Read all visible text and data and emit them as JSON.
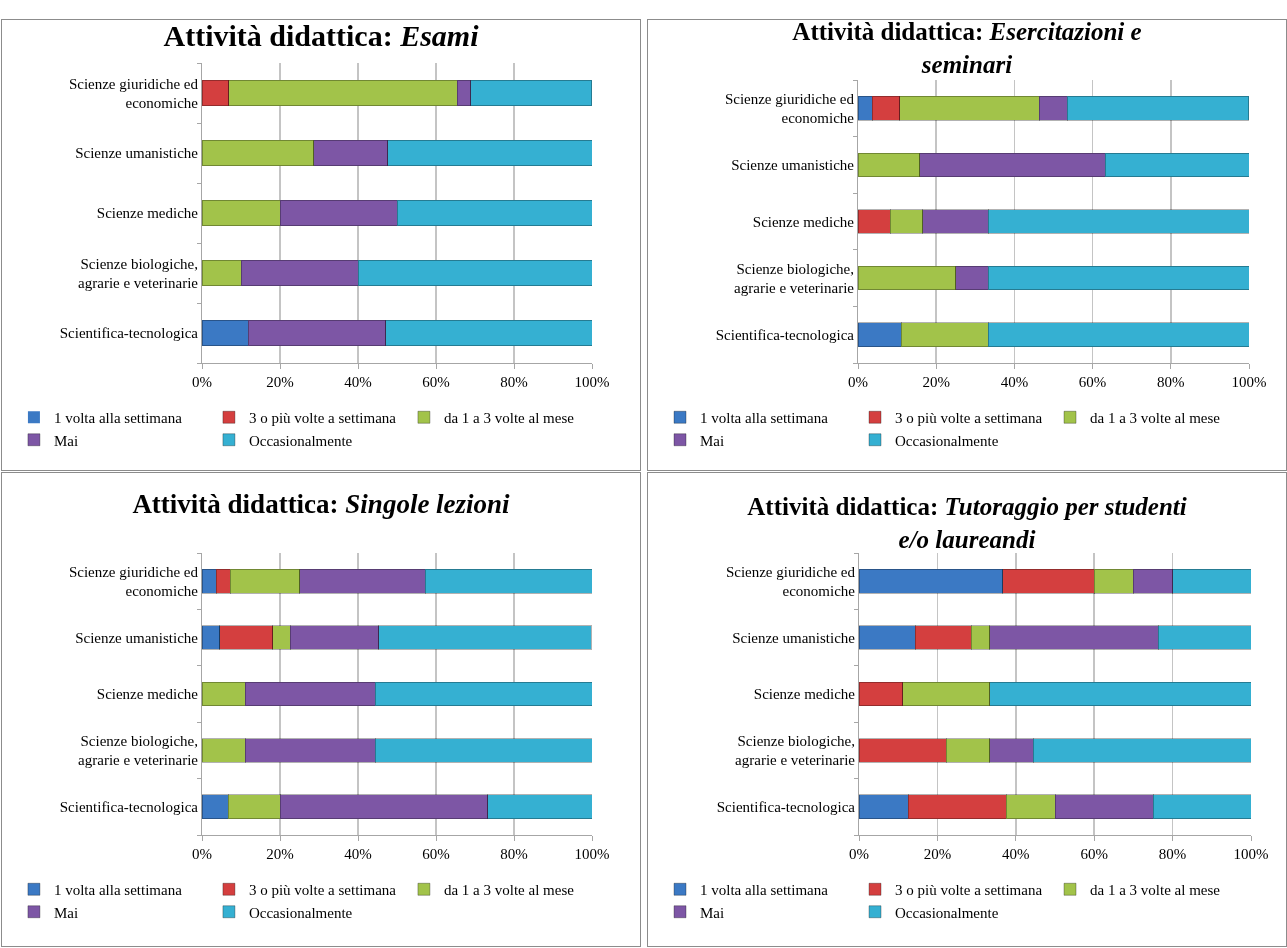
{
  "chart_data": [
    {
      "type": "bar",
      "orientation": "horizontal",
      "stacked": true,
      "title": "Attività didattica: Esami",
      "categories": [
        "Scienze giuridiche ed economiche",
        "Scienze umanistiche",
        "Scienze mediche",
        "Scienze biologiche, agrarie e veterinarie",
        "Scientifica-tecnologica"
      ],
      "series": [
        {
          "name": "1 volta alla settimana",
          "color": "#3b79c4",
          "values": [
            0,
            0,
            0,
            0,
            11.8
          ]
        },
        {
          "name": "3 o più volte a settimana",
          "color": "#d43f3f",
          "values": [
            6.9,
            0,
            0,
            0,
            0
          ]
        },
        {
          "name": "da 1 a 3 volte al mese",
          "color": "#a2c34a",
          "values": [
            58.6,
            28.6,
            20,
            10,
            0
          ]
        },
        {
          "name": "Mai",
          "color": "#7d56a5",
          "values": [
            3.4,
            19.0,
            30,
            30,
            35.3
          ]
        },
        {
          "name": "Occasionalmente",
          "color": "#35b0d2",
          "values": [
            31.0,
            52.4,
            50,
            60,
            52.9
          ]
        }
      ],
      "xlim": [
        0,
        100
      ],
      "xticks": [
        {
          "value": 0,
          "label": "0%"
        },
        {
          "value": 20,
          "label": "20%"
        },
        {
          "value": 40,
          "label": "40%"
        },
        {
          "value": 60,
          "label": "60%"
        },
        {
          "value": 80,
          "label": "80%"
        },
        {
          "value": 100,
          "label": "100%"
        }
      ],
      "grid": "x",
      "legend": "bottom"
    },
    {
      "type": "bar",
      "orientation": "horizontal",
      "stacked": true,
      "title": "Attività didattica: Esercitazioni e seminari",
      "categories": [
        "Scienze giuridiche ed economiche",
        "Scienze umanistiche",
        "Scienze mediche",
        "Scienze biologiche, agrarie e veterinarie",
        "Scientifica-tecnologica"
      ],
      "series": [
        {
          "name": "1 volta alla settimana",
          "color": "#3b79c4",
          "values": [
            3.6,
            0,
            0,
            0,
            11.1
          ]
        },
        {
          "name": "3 o più volte a settimana",
          "color": "#d43f3f",
          "values": [
            7.1,
            0,
            8.3,
            0,
            0
          ]
        },
        {
          "name": "da 1 a 3 volte al mese",
          "color": "#a2c34a",
          "values": [
            35.7,
            15.8,
            8.3,
            25.0,
            22.2
          ]
        },
        {
          "name": "Mai",
          "color": "#7d56a5",
          "values": [
            7.1,
            47.4,
            16.7,
            8.3,
            0
          ]
        },
        {
          "name": "Occasionalmente",
          "color": "#35b0d2",
          "values": [
            46.4,
            36.8,
            66.7,
            66.7,
            66.7
          ]
        }
      ],
      "xlim": [
        0,
        100
      ],
      "xticks": [
        {
          "value": 0,
          "label": "0%"
        },
        {
          "value": 20,
          "label": "20%"
        },
        {
          "value": 40,
          "label": "40%"
        },
        {
          "value": 60,
          "label": "60%"
        },
        {
          "value": 80,
          "label": "80%"
        },
        {
          "value": 100,
          "label": "100%"
        }
      ],
      "grid": "x",
      "legend": "bottom"
    },
    {
      "type": "bar",
      "orientation": "horizontal",
      "stacked": true,
      "title": "Attività didattica: Singole lezioni",
      "categories": [
        "Scienze giuridiche ed economiche",
        "Scienze umanistiche",
        "Scienze mediche",
        "Scienze biologiche, agrarie e veterinarie",
        "Scientifica-tecnologica"
      ],
      "series": [
        {
          "name": "1 volta alla settimana",
          "color": "#3b79c4",
          "values": [
            3.6,
            4.5,
            0,
            0,
            6.7
          ]
        },
        {
          "name": "3 o più volte a settimana",
          "color": "#d43f3f",
          "values": [
            3.6,
            13.6,
            0,
            0,
            0
          ]
        },
        {
          "name": "da 1 a 3 volte al mese",
          "color": "#a2c34a",
          "values": [
            17.9,
            4.5,
            11.1,
            11.1,
            13.3
          ]
        },
        {
          "name": "Mai",
          "color": "#7d56a5",
          "values": [
            32.1,
            22.7,
            33.3,
            33.3,
            53.3
          ]
        },
        {
          "name": "Occasionalmente",
          "color": "#35b0d2",
          "values": [
            42.8,
            54.5,
            55.6,
            55.6,
            26.7
          ]
        }
      ],
      "xlim": [
        0,
        100
      ],
      "xticks": [
        {
          "value": 0,
          "label": "0%"
        },
        {
          "value": 20,
          "label": "20%"
        },
        {
          "value": 40,
          "label": "40%"
        },
        {
          "value": 60,
          "label": "60%"
        },
        {
          "value": 80,
          "label": "80%"
        },
        {
          "value": 100,
          "label": "100%"
        }
      ],
      "grid": "x",
      "legend": "bottom"
    },
    {
      "type": "bar",
      "orientation": "horizontal",
      "stacked": true,
      "title": "Attività didattica: Tutoraggio per studenti e/o laureandi",
      "categories": [
        "Scienze giuridiche ed economiche",
        "Scienze umanistiche",
        "Scienze mediche",
        "Scienze biologiche, agrarie e veterinarie",
        "Scientifica-tecnologica"
      ],
      "series": [
        {
          "name": "1 volta alla settimana",
          "color": "#3b79c4",
          "values": [
            36.7,
            14.3,
            0,
            0,
            12.5
          ]
        },
        {
          "name": "3 o più volte a settimana",
          "color": "#d43f3f",
          "values": [
            23.3,
            14.3,
            11.1,
            22.2,
            25
          ]
        },
        {
          "name": "da 1 a 3 volte al mese",
          "color": "#a2c34a",
          "values": [
            10,
            4.8,
            22.2,
            11.1,
            12.5
          ]
        },
        {
          "name": "Mai",
          "color": "#7d56a5",
          "values": [
            10,
            42.9,
            0,
            11.1,
            25
          ]
        },
        {
          "name": "Occasionalmente",
          "color": "#35b0d2",
          "values": [
            20,
            23.7,
            66.7,
            55.6,
            25
          ]
        }
      ],
      "xlim": [
        0,
        100
      ],
      "xticks": [
        {
          "value": 0,
          "label": "0%"
        },
        {
          "value": 20,
          "label": "20%"
        },
        {
          "value": 40,
          "label": "40%"
        },
        {
          "value": 60,
          "label": "60%"
        },
        {
          "value": 80,
          "label": "80%"
        },
        {
          "value": 100,
          "label": "100%"
        }
      ],
      "grid": "x",
      "legend": "bottom"
    }
  ]
}
